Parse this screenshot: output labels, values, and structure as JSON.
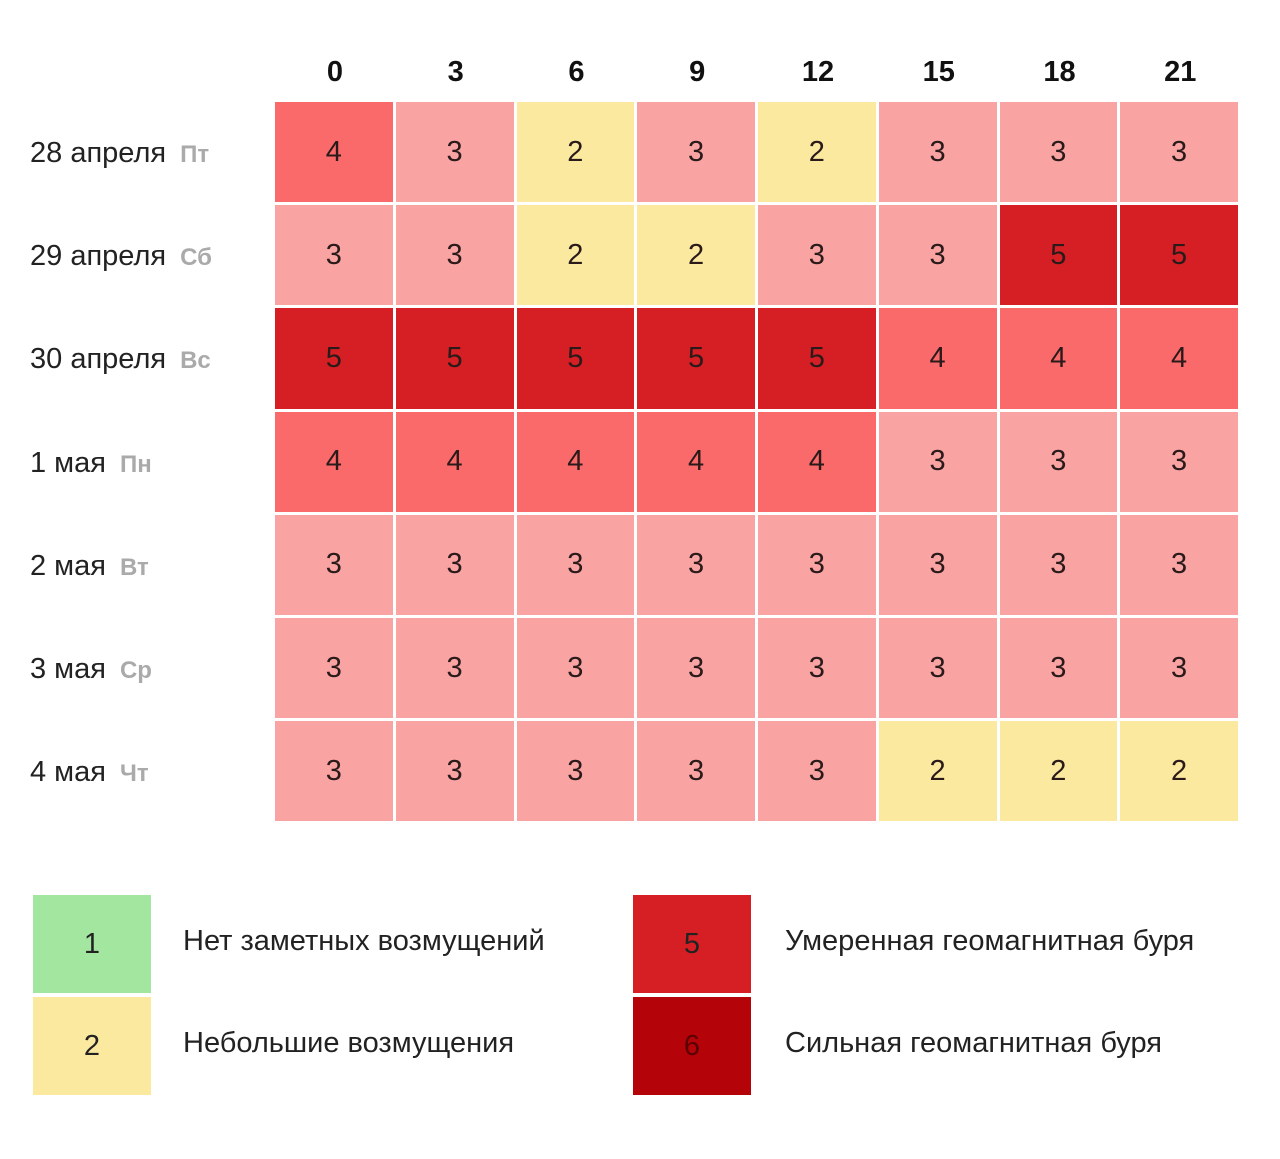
{
  "chart_data": {
    "type": "heatmap",
    "title": "",
    "columns": [
      "0",
      "3",
      "6",
      "9",
      "12",
      "15",
      "18",
      "21"
    ],
    "rows": [
      {
        "date": "28 апреля",
        "weekday": "Пт",
        "values": [
          4,
          3,
          2,
          3,
          2,
          3,
          3,
          3
        ]
      },
      {
        "date": "29 апреля",
        "weekday": "Сб",
        "values": [
          3,
          3,
          2,
          2,
          3,
          3,
          5,
          5
        ]
      },
      {
        "date": "30 апреля",
        "weekday": "Вс",
        "values": [
          5,
          5,
          5,
          5,
          5,
          4,
          4,
          4
        ]
      },
      {
        "date": "1 мая",
        "weekday": "Пн",
        "values": [
          4,
          4,
          4,
          4,
          4,
          3,
          3,
          3
        ]
      },
      {
        "date": "2 мая",
        "weekday": "Вт",
        "values": [
          3,
          3,
          3,
          3,
          3,
          3,
          3,
          3
        ]
      },
      {
        "date": "3 мая",
        "weekday": "Ср",
        "values": [
          3,
          3,
          3,
          3,
          3,
          3,
          3,
          3
        ]
      },
      {
        "date": "4 мая",
        "weekday": "Чт",
        "values": [
          3,
          3,
          3,
          3,
          3,
          2,
          2,
          2
        ]
      }
    ],
    "color_scale": {
      "1": "#a3e6a0",
      "2": "#fbe9a0",
      "3": "#f9a3a3",
      "4": "#fb6a6a",
      "5": "#d61f24",
      "6": "#b50409"
    },
    "legend": [
      {
        "level": "1",
        "label": "Нет заметных возмущений"
      },
      {
        "level": "2",
        "label": "Небольшие возмущения"
      },
      {
        "level": "5",
        "label": "Умеренная геомагнитная буря"
      },
      {
        "level": "6",
        "label": "Сильная геомагнитная буря"
      }
    ]
  }
}
